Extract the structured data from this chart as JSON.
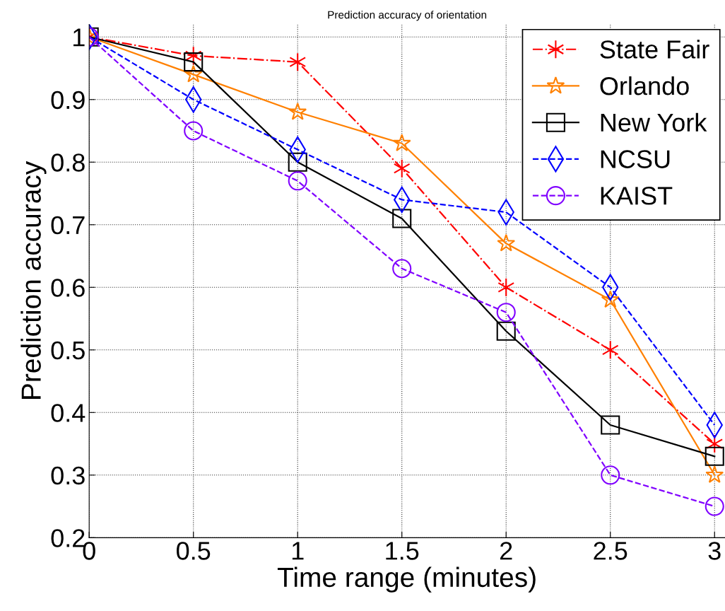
{
  "chart_data": {
    "type": "line",
    "title": "Prediction accuracy of orientation",
    "xlabel": "Time range (minutes)",
    "ylabel": "Prediction accuracy",
    "x": [
      0,
      0.5,
      1,
      1.5,
      2,
      2.5,
      3
    ],
    "series": [
      {
        "name": "State Fair",
        "color": "#ff0000",
        "marker": "cross",
        "line_style": "dashdot",
        "values": [
          1,
          0.97,
          0.96,
          0.79,
          0.6,
          0.5,
          0.35
        ]
      },
      {
        "name": "Orlando",
        "color": "#ff8000",
        "marker": "star",
        "line_style": "solid",
        "values": [
          1,
          0.94,
          0.88,
          0.83,
          0.67,
          0.58,
          0.3
        ]
      },
      {
        "name": "New York",
        "color": "#000000",
        "marker": "square",
        "line_style": "solid",
        "values": [
          1,
          0.96,
          0.8,
          0.71,
          0.53,
          0.38,
          0.33
        ]
      },
      {
        "name": "NCSU",
        "color": "#0000ff",
        "marker": "diamond",
        "line_style": "dashed",
        "values": [
          1,
          0.9,
          0.82,
          0.74,
          0.72,
          0.6,
          0.38
        ]
      },
      {
        "name": "KAIST",
        "color": "#8000ff",
        "marker": "circle",
        "line_style": "dashed",
        "values": [
          1,
          0.85,
          0.77,
          0.63,
          0.56,
          0.3,
          0.25
        ]
      }
    ],
    "xlim": [
      0,
      3.05
    ],
    "xticks": [
      0,
      0.5,
      1,
      1.5,
      2,
      2.5,
      3
    ],
    "ylim": [
      0.2,
      1.02
    ],
    "yticks": [
      0.2,
      0.3,
      0.4,
      0.5,
      0.6,
      0.7,
      0.8,
      0.9,
      1
    ],
    "grid": true,
    "legend": "top right"
  }
}
